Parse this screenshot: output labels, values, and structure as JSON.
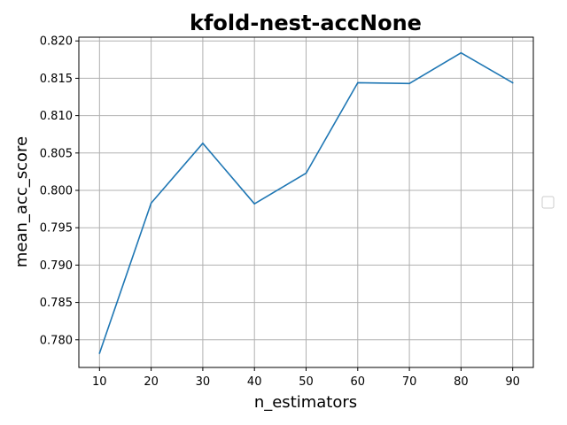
{
  "chart_data": {
    "type": "line",
    "title": "kfold-nest-accNone",
    "xlabel": "n_estimators",
    "ylabel": "mean_acc_score",
    "x": [
      10,
      20,
      30,
      40,
      50,
      60,
      70,
      80,
      90
    ],
    "series": [
      {
        "values": [
          0.7782,
          0.7983,
          0.8063,
          0.7982,
          0.8023,
          0.8144,
          0.8143,
          0.8184,
          0.8144
        ]
      }
    ],
    "xlim": [
      6,
      94
    ],
    "ylim": [
      0.7763,
      0.8205
    ],
    "xticks": [
      10,
      20,
      30,
      40,
      50,
      60,
      70,
      80,
      90
    ],
    "yticks": [
      0.78,
      0.785,
      0.79,
      0.795,
      0.8,
      0.805,
      0.81,
      0.815,
      0.82
    ],
    "ytick_labels": [
      "0.780",
      "0.785",
      "0.790",
      "0.795",
      "0.800",
      "0.805",
      "0.810",
      "0.815",
      "0.820"
    ],
    "grid": true,
    "legend": "center-right, empty",
    "colors": {
      "series": "#1f77b4"
    }
  }
}
